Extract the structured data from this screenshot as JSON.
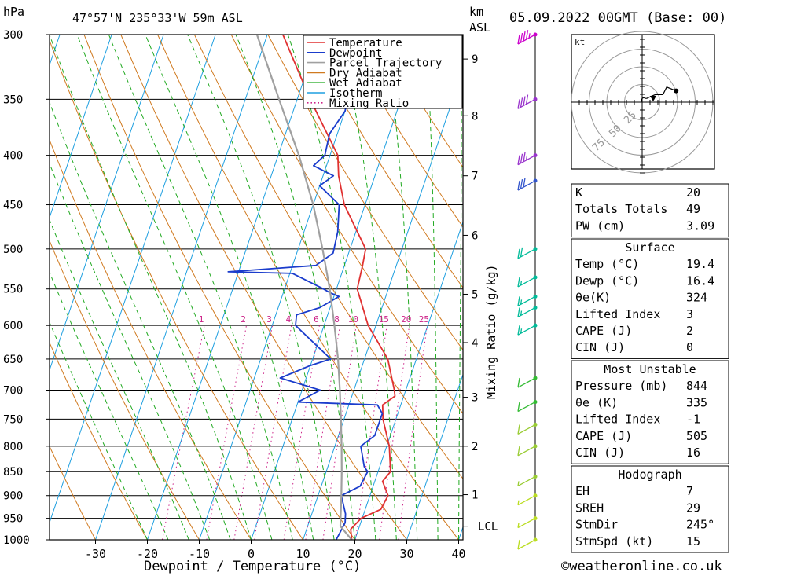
{
  "header": {
    "pressure_unit": "hPa",
    "location": "47°57'N  235°33'W  59m  ASL",
    "km_unit": "km",
    "asl": "ASL",
    "datetime": "05.09.2022  00GMT  (Base: 00)"
  },
  "footer": {
    "copyright": "©weatheronline.co.uk"
  },
  "colors": {
    "temperature": "#e03030",
    "dewpoint": "#1a3ccc",
    "parcel": "#a0a0a0",
    "dry_adiabat": "#d07a20",
    "wet_adiabat": "#22aa22",
    "isotherm": "#1e9fe0",
    "mixing_ratio": "#cc2288"
  },
  "chart_data": {
    "type": "line",
    "title": "",
    "xlabel": "Dewpoint / Temperature (°C)",
    "ylabel": "",
    "right_axis_label": "Mixing Ratio (g/kg)",
    "xlim": [
      -40,
      40
    ],
    "ylim": [
      1000,
      300
    ],
    "y_scale": "log",
    "pressure_ticks": [
      300,
      350,
      400,
      450,
      500,
      550,
      600,
      650,
      700,
      750,
      800,
      850,
      900,
      950,
      1000
    ],
    "temperature_ticks": [
      -30,
      -20,
      -10,
      0,
      10,
      20,
      30,
      40
    ],
    "height_km_ticks": [
      {
        "label": "9",
        "p": 318
      },
      {
        "label": "8",
        "p": 364
      },
      {
        "label": "7",
        "p": 420
      },
      {
        "label": "6",
        "p": 484
      },
      {
        "label": "5",
        "p": 557
      },
      {
        "label": "4",
        "p": 625
      },
      {
        "label": "3",
        "p": 712
      },
      {
        "label": "2",
        "p": 800
      },
      {
        "label": "1",
        "p": 898
      },
      {
        "label": "LCL",
        "p": 968
      }
    ],
    "mixing_ratio_labels": [
      "1",
      "2",
      "3",
      "4",
      "6",
      "8",
      "10",
      "15",
      "20",
      "25"
    ],
    "legend": {
      "placement": "top-right",
      "entries": [
        "Temperature",
        "Dewpoint",
        "Parcel Trajectory",
        "Dry Adiabat",
        "Wet Adiabat",
        "Isotherm",
        "Mixing Ratio"
      ]
    },
    "series": [
      {
        "name": "Temperature",
        "points": [
          [
            1000,
            19.4
          ],
          [
            975,
            18.5
          ],
          [
            950,
            19.8
          ],
          [
            930,
            23.0
          ],
          [
            900,
            23.5
          ],
          [
            870,
            21.5
          ],
          [
            850,
            22.4
          ],
          [
            800,
            20.5
          ],
          [
            750,
            17.5
          ],
          [
            725,
            16.5
          ],
          [
            710,
            18.3
          ],
          [
            700,
            17.8
          ],
          [
            650,
            14.5
          ],
          [
            600,
            8.5
          ],
          [
            550,
            4.0
          ],
          [
            520,
            3.5
          ],
          [
            500,
            3.0
          ],
          [
            450,
            -4.0
          ],
          [
            420,
            -7.0
          ],
          [
            400,
            -8.5
          ],
          [
            350,
            -17.5
          ],
          [
            300,
            -27.0
          ]
        ]
      },
      {
        "name": "Dewpoint",
        "points": [
          [
            1000,
            16.4
          ],
          [
            960,
            17.0
          ],
          [
            940,
            16.5
          ],
          [
            910,
            15.0
          ],
          [
            900,
            14.5
          ],
          [
            880,
            17.5
          ],
          [
            850,
            18.0
          ],
          [
            840,
            17.0
          ],
          [
            800,
            15.0
          ],
          [
            780,
            17.0
          ],
          [
            740,
            17.0
          ],
          [
            725,
            15.5
          ],
          [
            720,
            0.0
          ],
          [
            700,
            3.5
          ],
          [
            680,
            -5.0
          ],
          [
            660,
            0.0
          ],
          [
            650,
            3.5
          ],
          [
            600,
            -5.5
          ],
          [
            585,
            -6.0
          ],
          [
            575,
            -2.0
          ],
          [
            560,
            1.0
          ],
          [
            555,
            -1.0
          ],
          [
            550,
            -2.5
          ],
          [
            530,
            -9.5
          ],
          [
            528,
            -22.0
          ],
          [
            520,
            -5.5
          ],
          [
            505,
            -3.0
          ],
          [
            480,
            -3.5
          ],
          [
            450,
            -5.0
          ],
          [
            430,
            -10.0
          ],
          [
            420,
            -8.0
          ],
          [
            410,
            -12.5
          ],
          [
            400,
            -11.0
          ],
          [
            380,
            -11.5
          ],
          [
            360,
            -10.0
          ],
          [
            330,
            -11.0
          ],
          [
            310,
            -13.5
          ],
          [
            300,
            -12.0
          ]
        ]
      },
      {
        "name": "Parcel Trajectory",
        "points": [
          [
            1000,
            19.4
          ],
          [
            968,
            16.3
          ],
          [
            900,
            14.5
          ],
          [
            850,
            13.0
          ],
          [
            800,
            11.3
          ],
          [
            750,
            9.4
          ],
          [
            700,
            7.3
          ],
          [
            650,
            4.9
          ],
          [
            600,
            2.0
          ],
          [
            550,
            -1.3
          ],
          [
            500,
            -5.3
          ],
          [
            450,
            -10.0
          ],
          [
            400,
            -16.0
          ],
          [
            350,
            -23.5
          ],
          [
            300,
            -32.0
          ]
        ]
      }
    ],
    "wind_barbs": [
      {
        "p": 300,
        "speed": 45
      },
      {
        "p": 350,
        "speed": 40
      },
      {
        "p": 400,
        "speed": 35
      },
      {
        "p": 425,
        "speed": 30
      },
      {
        "p": 500,
        "speed": 20
      },
      {
        "p": 535,
        "speed": 15
      },
      {
        "p": 560,
        "speed": 15
      },
      {
        "p": 575,
        "speed": 15
      },
      {
        "p": 600,
        "speed": 15
      },
      {
        "p": 680,
        "speed": 10
      },
      {
        "p": 720,
        "speed": 10
      },
      {
        "p": 760,
        "speed": 10
      },
      {
        "p": 800,
        "speed": 10
      },
      {
        "p": 860,
        "speed": 5
      },
      {
        "p": 900,
        "speed": 5
      },
      {
        "p": 950,
        "speed": 5
      },
      {
        "p": 1000,
        "speed": 10
      }
    ],
    "hodograph": {
      "unit": "kt",
      "ring_labels": [
        "25",
        "50",
        "75"
      ],
      "points": [
        [
          -1,
          0
        ],
        [
          -1,
          1
        ],
        [
          0,
          4
        ],
        [
          2,
          5
        ],
        [
          3,
          4
        ],
        [
          5,
          4
        ],
        [
          9,
          6
        ],
        [
          14,
          8
        ],
        [
          22,
          8
        ],
        [
          26,
          16
        ],
        [
          36,
          12
        ]
      ]
    }
  },
  "indices": {
    "top": [
      {
        "label": "K",
        "value": "20"
      },
      {
        "label": "Totals Totals",
        "value": "49"
      },
      {
        "label": "PW (cm)",
        "value": "3.09"
      }
    ],
    "surface": {
      "title": "Surface",
      "rows": [
        {
          "label": "Temp (°C)",
          "value": "19.4"
        },
        {
          "label": "Dewp (°C)",
          "value": "16.4"
        },
        {
          "label": "θe(K)",
          "value": "324"
        },
        {
          "label": "Lifted Index",
          "value": "3"
        },
        {
          "label": "CAPE (J)",
          "value": "2"
        },
        {
          "label": "CIN (J)",
          "value": "0"
        }
      ]
    },
    "most_unstable": {
      "title": "Most Unstable",
      "rows": [
        {
          "label": "Pressure (mb)",
          "value": "844"
        },
        {
          "label": "θe (K)",
          "value": "335"
        },
        {
          "label": "Lifted Index",
          "value": "-1"
        },
        {
          "label": "CAPE (J)",
          "value": "505"
        },
        {
          "label": "CIN (J)",
          "value": "16"
        }
      ]
    },
    "hodograph": {
      "title": "Hodograph",
      "rows": [
        {
          "label": "EH",
          "value": "7"
        },
        {
          "label": "SREH",
          "value": "29"
        },
        {
          "label": "StmDir",
          "value": "245°"
        },
        {
          "label": "StmSpd (kt)",
          "value": "15"
        }
      ]
    }
  }
}
